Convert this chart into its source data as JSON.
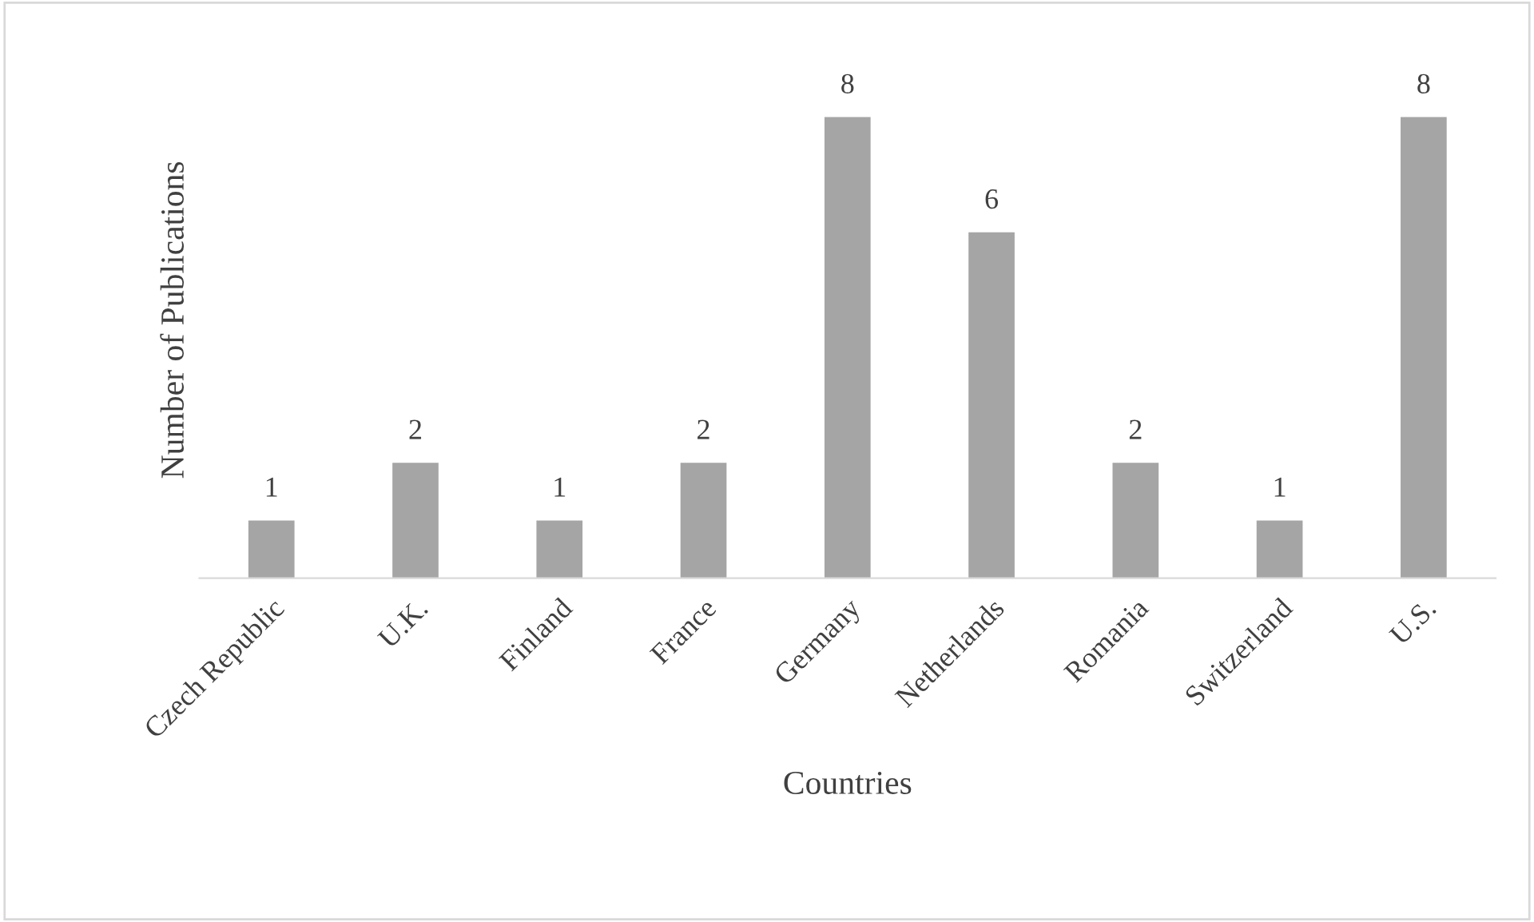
{
  "chart_data": {
    "type": "bar",
    "xlabel": "Countries",
    "ylabel": "Number of Publications",
    "categories": [
      "Czech Republic",
      "U.K.",
      "Finland",
      "France",
      "Germany",
      "Netherlands",
      "Romania",
      "Switzerland",
      "U.S."
    ],
    "values": [
      1,
      2,
      1,
      2,
      8,
      6,
      2,
      1,
      8
    ],
    "color": "#a5a5a5",
    "data_labels": true,
    "grid": false,
    "legend": false,
    "tick_labels": "x"
  }
}
